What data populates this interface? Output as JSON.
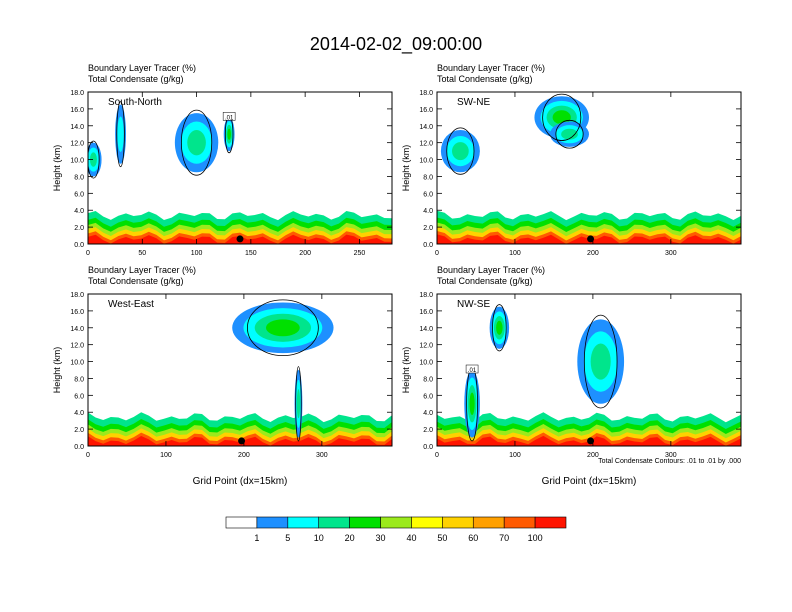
{
  "title": "2014-02-02_09:00:00",
  "footer_note": "Total Condensate Contours: .01 to .01 by .000",
  "colorbar": {
    "labels": [
      "1",
      "5",
      "10",
      "20",
      "30",
      "40",
      "50",
      "60",
      "70",
      "100"
    ],
    "colors": [
      "#ffffff",
      "#1e90ff",
      "#00ffff",
      "#00e58c",
      "#00e000",
      "#9bea1c",
      "#ffff00",
      "#ffd200",
      "#ffa000",
      "#ff5a00",
      "#ff1400"
    ]
  },
  "chart_data": [
    {
      "type": "heatmap",
      "subtitle1": "Boundary Layer Tracer   (%)",
      "subtitle2": "Total Condensate   (g/kg)",
      "label": "South-North",
      "ylabel": "Height (km)",
      "xlabel": "",
      "xlim": [
        0,
        280
      ],
      "ylim": [
        0,
        18
      ],
      "xticks": [
        "0",
        "50",
        "100",
        "150",
        "200",
        "250"
      ],
      "xtick_values": [
        0,
        50,
        100,
        150,
        200,
        250
      ],
      "yticks": [
        "0.0",
        "2.0",
        "4.0",
        "6.0",
        "8.0",
        "10.0",
        "12.0",
        "14.0",
        "16.0",
        "18.0"
      ],
      "marker_x": 140,
      "contour_label": ".01",
      "tracer_blobs": [
        {
          "x": 5,
          "y": 10,
          "value": 10,
          "w": 15,
          "h": 4
        },
        {
          "x": 30,
          "y": 13,
          "value": 5,
          "w": 10,
          "h": 7
        },
        {
          "x": 100,
          "y": 12,
          "value": 10,
          "w": 40,
          "h": 7
        },
        {
          "x": 130,
          "y": 13,
          "value": 20,
          "w": 10,
          "h": 4
        }
      ]
    },
    {
      "type": "heatmap",
      "subtitle1": "Boundary Layer Tracer   (%)",
      "subtitle2": "Total Condensate   (g/kg)",
      "label": "SW-NE",
      "ylabel": "Height (km)",
      "xlabel": "",
      "xlim": [
        0,
        390
      ],
      "ylim": [
        0,
        18
      ],
      "xticks": [
        "0",
        "100",
        "200",
        "300"
      ],
      "xtick_values": [
        0,
        100,
        200,
        300
      ],
      "yticks": [
        "0.0",
        "2.0",
        "4.0",
        "6.0",
        "8.0",
        "10.0",
        "12.0",
        "14.0",
        "16.0",
        "18.0"
      ],
      "marker_x": 197,
      "contour_label": "",
      "tracer_blobs": [
        {
          "x": 30,
          "y": 11,
          "value": 10,
          "w": 50,
          "h": 5
        },
        {
          "x": 160,
          "y": 15,
          "value": 20,
          "w": 70,
          "h": 5
        },
        {
          "x": 170,
          "y": 13,
          "value": 10,
          "w": 50,
          "h": 3
        }
      ]
    },
    {
      "type": "heatmap",
      "subtitle1": "Boundary Layer Tracer   (%)",
      "subtitle2": "Total Condensate   (g/kg)",
      "label": "West-East",
      "ylabel": "Height (km)",
      "xlabel": "Grid Point (dx=15km)",
      "xlim": [
        0,
        390
      ],
      "ylim": [
        0,
        18
      ],
      "xticks": [
        "0",
        "100",
        "200",
        "300"
      ],
      "xtick_values": [
        0,
        100,
        200,
        300
      ],
      "yticks": [
        "0.0",
        "2.0",
        "4.0",
        "6.0",
        "8.0",
        "10.0",
        "12.0",
        "14.0",
        "16.0",
        "18.0"
      ],
      "marker_x": 197,
      "contour_label": "",
      "tracer_blobs": [
        {
          "x": 250,
          "y": 14,
          "value": 20,
          "w": 130,
          "h": 6
        },
        {
          "x": 270,
          "y": 5,
          "value": 10,
          "w": 10,
          "h": 8
        }
      ]
    },
    {
      "type": "heatmap",
      "subtitle1": "Boundary Layer Tracer   (%)",
      "subtitle2": "Total Condensate   (g/kg)",
      "label": "NW-SE",
      "ylabel": "Height (km)",
      "xlabel": "Grid Point (dx=15km)",
      "xlim": [
        0,
        390
      ],
      "ylim": [
        0,
        18
      ],
      "xticks": [
        "0",
        "100",
        "200",
        "300"
      ],
      "xtick_values": [
        0,
        100,
        200,
        300
      ],
      "yticks": [
        "0.0",
        "2.0",
        "4.0",
        "6.0",
        "8.0",
        "10.0",
        "12.0",
        "14.0",
        "16.0",
        "18.0"
      ],
      "marker_x": 197,
      "contour_label": ".01",
      "tracer_blobs": [
        {
          "x": 80,
          "y": 14,
          "value": 20,
          "w": 25,
          "h": 5
        },
        {
          "x": 210,
          "y": 10,
          "value": 10,
          "w": 60,
          "h": 10
        },
        {
          "x": 45,
          "y": 5,
          "value": 20,
          "w": 20,
          "h": 8
        }
      ]
    }
  ]
}
